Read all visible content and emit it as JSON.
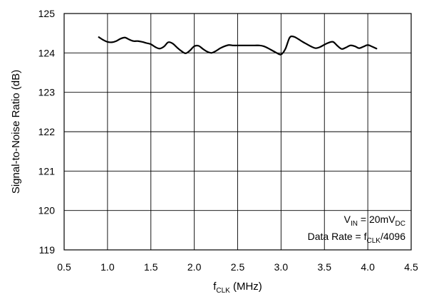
{
  "chart_data": {
    "type": "line",
    "title": "",
    "xlabel": {
      "prefix": "f",
      "sub": "CLK",
      "suffix": " (MHz)"
    },
    "ylabel": "Signal-to-Noise Ratio (dB)",
    "xlim": [
      0.5,
      4.5
    ],
    "ylim": [
      119,
      125
    ],
    "x_ticks": [
      0.5,
      1.0,
      1.5,
      2.0,
      2.5,
      3.0,
      3.5,
      4.0,
      4.5
    ],
    "x_tick_labels": [
      "0.5",
      "1.0",
      "1.5",
      "2.0",
      "2.5",
      "3.0",
      "3.5",
      "4.0",
      "4.5"
    ],
    "y_ticks": [
      119,
      120,
      121,
      122,
      123,
      124,
      125
    ],
    "y_tick_labels": [
      "119",
      "120",
      "121",
      "122",
      "123",
      "124",
      "125"
    ],
    "grid": true,
    "legend": "none",
    "annotations": [
      {
        "parts": [
          [
            "V",
            ""
          ],
          [
            "IN",
            "sub"
          ],
          [
            " = 20mV",
            ""
          ],
          [
            "DC",
            "sub"
          ]
        ]
      },
      {
        "parts": [
          [
            "Data Rate = f",
            ""
          ],
          [
            "CLK",
            "sub"
          ],
          [
            "/4096",
            ""
          ]
        ]
      }
    ],
    "series": [
      {
        "color": "#000000",
        "x": [
          0.9,
          0.95,
          1.0,
          1.05,
          1.1,
          1.15,
          1.2,
          1.25,
          1.3,
          1.35,
          1.4,
          1.45,
          1.5,
          1.55,
          1.6,
          1.65,
          1.7,
          1.75,
          1.8,
          1.85,
          1.9,
          1.95,
          2.0,
          2.05,
          2.1,
          2.15,
          2.2,
          2.25,
          2.3,
          2.35,
          2.4,
          2.45,
          2.5,
          2.55,
          2.6,
          2.65,
          2.7,
          2.75,
          2.8,
          2.85,
          2.9,
          2.95,
          3.0,
          3.05,
          3.1,
          3.15,
          3.2,
          3.25,
          3.3,
          3.35,
          3.4,
          3.45,
          3.5,
          3.55,
          3.6,
          3.65,
          3.7,
          3.75,
          3.8,
          3.85,
          3.9,
          3.95,
          4.0,
          4.05,
          4.1
        ],
        "y": [
          124.4,
          124.33,
          124.28,
          124.27,
          124.3,
          124.36,
          124.39,
          124.34,
          124.3,
          124.3,
          124.28,
          124.25,
          124.22,
          124.15,
          124.11,
          124.16,
          124.27,
          124.24,
          124.14,
          124.05,
          123.99,
          124.06,
          124.17,
          124.18,
          124.1,
          124.03,
          124.0,
          124.05,
          124.12,
          124.17,
          124.2,
          124.19,
          124.19,
          124.19,
          124.19,
          124.19,
          124.19,
          124.19,
          124.17,
          124.12,
          124.06,
          124.0,
          123.96,
          124.1,
          124.39,
          124.41,
          124.35,
          124.28,
          124.22,
          124.16,
          124.12,
          124.15,
          124.21,
          124.26,
          124.28,
          124.18,
          124.1,
          124.14,
          124.19,
          124.17,
          124.12,
          124.16,
          124.2,
          124.16,
          124.11
        ]
      }
    ]
  }
}
